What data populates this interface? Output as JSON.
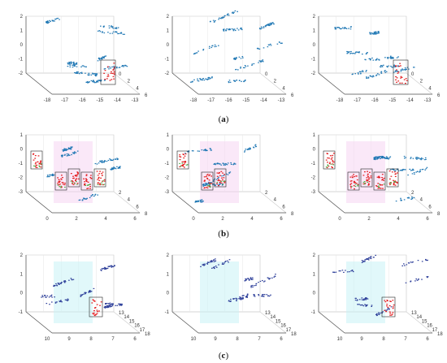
{
  "figure": {
    "captions": [
      "a",
      "b",
      "c"
    ]
  },
  "chart_data": [
    {
      "type": "scatter",
      "title": "",
      "panel": "a1",
      "x_ticks": [
        "-18",
        "-17",
        "-16",
        "-15",
        "-14",
        "-13"
      ],
      "y_ticks": [
        "0",
        "2",
        "4",
        "6"
      ],
      "z_ticks": [
        "-2",
        "-1",
        "0",
        "1",
        "2"
      ],
      "series": [
        {
          "color": "#1f77b4"
        },
        {
          "color": "#e31a1c"
        }
      ],
      "highlight_boxes": 1
    },
    {
      "type": "scatter",
      "panel": "a2",
      "x_ticks": [
        "-18",
        "-17",
        "-16",
        "-15",
        "-14",
        "-13"
      ],
      "y_ticks": [
        "0",
        "2",
        "4",
        "6"
      ],
      "z_ticks": [
        "-2",
        "-1",
        "0",
        "1",
        "2"
      ],
      "series": [
        {
          "color": "#1f77b4"
        }
      ],
      "highlight_boxes": 0
    },
    {
      "type": "scatter",
      "panel": "a3",
      "x_ticks": [
        "-18",
        "-17",
        "-16",
        "-15",
        "-14",
        "-13"
      ],
      "y_ticks": [
        "0",
        "2",
        "4",
        "6"
      ],
      "z_ticks": [
        "-2",
        "-1",
        "0",
        "1",
        "2"
      ],
      "series": [
        {
          "color": "#1f77b4"
        },
        {
          "color": "#e31a1c"
        }
      ],
      "highlight_boxes": 1
    },
    {
      "type": "scatter",
      "panel": "b1",
      "x_ticks": [
        "0",
        "2",
        "4",
        "6"
      ],
      "y_ticks": [
        "2",
        "4",
        "6",
        "8"
      ],
      "z_ticks": [
        "-3",
        "-2",
        "-1",
        "0",
        "1"
      ],
      "series": [
        {
          "color": "#1f77b4"
        },
        {
          "color": "#e31a1c"
        },
        {
          "color": "#4daf4a"
        }
      ],
      "highlight_boxes": 5
    },
    {
      "type": "scatter",
      "panel": "b2",
      "x_ticks": [
        "0",
        "2",
        "4",
        "6"
      ],
      "y_ticks": [
        "2",
        "4",
        "6",
        "8"
      ],
      "z_ticks": [
        "-3",
        "-2",
        "-1",
        "0",
        "1"
      ],
      "series": [
        {
          "color": "#1f77b4"
        },
        {
          "color": "#e31a1c"
        },
        {
          "color": "#4daf4a"
        }
      ],
      "highlight_boxes": 3
    },
    {
      "type": "scatter",
      "panel": "b3",
      "x_ticks": [
        "0",
        "2",
        "4",
        "6"
      ],
      "y_ticks": [
        "2",
        "4",
        "6",
        "8"
      ],
      "z_ticks": [
        "-3",
        "-2",
        "-1",
        "0",
        "1"
      ],
      "series": [
        {
          "color": "#1f77b4"
        },
        {
          "color": "#e31a1c"
        },
        {
          "color": "#4daf4a"
        }
      ],
      "highlight_boxes": 5
    },
    {
      "type": "scatter",
      "panel": "c1",
      "x_ticks": [
        "10",
        "9",
        "8",
        "7",
        "6"
      ],
      "y_ticks": [
        "13",
        "14",
        "15",
        "16",
        "17",
        "18"
      ],
      "z_ticks": [
        "-1",
        "0",
        "1",
        "2"
      ],
      "series": [
        {
          "color": "#2c3e99"
        },
        {
          "color": "#e31a1c"
        }
      ],
      "highlight_boxes": 1
    },
    {
      "type": "scatter",
      "panel": "c2",
      "x_ticks": [
        "10",
        "9",
        "8",
        "7",
        "6"
      ],
      "y_ticks": [
        "13",
        "14",
        "15",
        "16",
        "17",
        "18"
      ],
      "z_ticks": [
        "-1",
        "0",
        "1",
        "2"
      ],
      "series": [
        {
          "color": "#2c3e99"
        }
      ],
      "highlight_boxes": 0
    },
    {
      "type": "scatter",
      "panel": "c3",
      "x_ticks": [
        "10",
        "9",
        "8",
        "7",
        "6"
      ],
      "y_ticks": [
        "13",
        "14",
        "15",
        "16",
        "17",
        "18"
      ],
      "z_ticks": [
        "-1",
        "0",
        "1",
        "2"
      ],
      "series": [
        {
          "color": "#2c3e99"
        },
        {
          "color": "#e31a1c"
        }
      ],
      "highlight_boxes": 1
    }
  ]
}
